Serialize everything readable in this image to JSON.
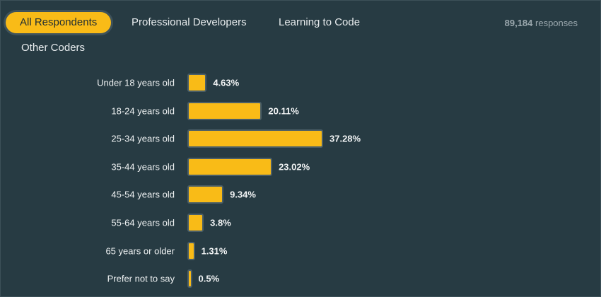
{
  "tabs": [
    {
      "label": "All Respondents",
      "active": true
    },
    {
      "label": "Professional Developers"
    },
    {
      "label": "Learning to Code"
    },
    {
      "label": "Other Coders"
    }
  ],
  "responses": {
    "count": "89,184",
    "label": "responses"
  },
  "colors": {
    "bar": "#f9bb17",
    "background": "#273b43"
  },
  "chart_data": {
    "type": "bar",
    "orientation": "horizontal",
    "categories": [
      "Under 18 years old",
      "18-24 years old",
      "25-34 years old",
      "35-44 years old",
      "45-54 years old",
      "55-64 years old",
      "65 years or older",
      "Prefer not to say"
    ],
    "values": [
      4.63,
      20.11,
      37.28,
      23.02,
      9.34,
      3.8,
      1.31,
      0.5
    ],
    "value_labels": [
      "4.63%",
      "20.11%",
      "37.28%",
      "23.02%",
      "9.34%",
      "3.8%",
      "1.31%",
      "0.5%"
    ]
  }
}
